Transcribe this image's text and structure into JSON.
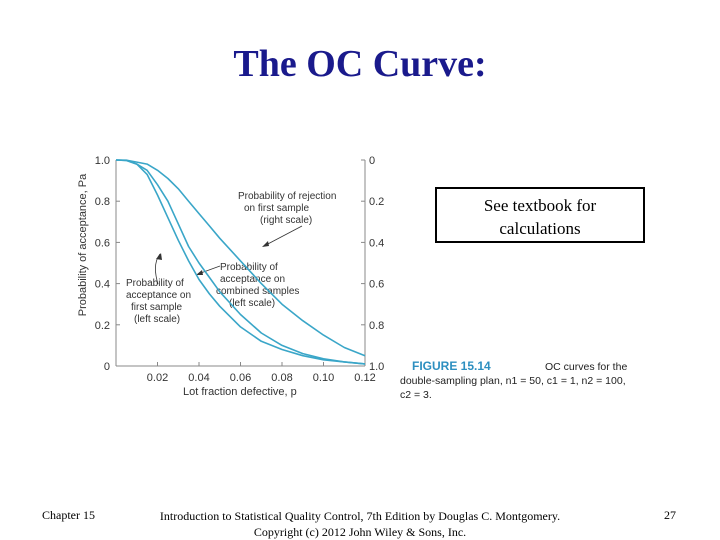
{
  "slide": {
    "title": "The OC Curve:",
    "note_line1": "See textbook for",
    "note_line2": "calculations",
    "footer_left": "Chapter 15",
    "footer_center_line1": "Introduction to Statistical Quality Control, 7th Edition by Douglas C. Montgomery.",
    "footer_center_line2": "Copyright (c) 2012  John Wiley & Sons, Inc.",
    "page_number": "27"
  },
  "chart_data": {
    "type": "line",
    "ylabel": "Probability of acceptance, Pa",
    "xlabel": "Lot fraction defective, p",
    "xlim": [
      0,
      0.12
    ],
    "ylim": [
      0,
      1.0
    ],
    "x_ticks": [
      "0.02",
      "0.04",
      "0.06",
      "0.08",
      "0.10",
      "0.12"
    ],
    "y_ticks": [
      "0",
      "0.2",
      "0.4",
      "0.6",
      "0.8",
      "1.0"
    ],
    "y2_ticks": [
      "0",
      "0.2",
      "0.4",
      "0.6",
      "0.8",
      "1.0"
    ],
    "x": [
      0,
      0.005,
      0.01,
      0.015,
      0.02,
      0.025,
      0.03,
      0.035,
      0.04,
      0.045,
      0.05,
      0.06,
      0.07,
      0.08,
      0.09,
      0.1,
      0.11,
      0.12
    ],
    "series": [
      {
        "values": [
          1.0,
          0.998,
          0.98,
          0.95,
          0.88,
          0.8,
          0.69,
          0.58,
          0.5,
          0.43,
          0.36,
          0.25,
          0.16,
          0.1,
          0.06,
          0.035,
          0.02,
          0.01
        ]
      },
      {
        "values": [
          1.0,
          0.998,
          0.98,
          0.93,
          0.83,
          0.72,
          0.61,
          0.51,
          0.42,
          0.35,
          0.29,
          0.19,
          0.12,
          0.08,
          0.05,
          0.03,
          0.02,
          0.01
        ]
      },
      {
        "values": [
          1.0,
          0.999,
          0.99,
          0.98,
          0.95,
          0.91,
          0.86,
          0.8,
          0.74,
          0.68,
          0.62,
          0.51,
          0.4,
          0.3,
          0.22,
          0.15,
          0.09,
          0.05
        ]
      }
    ],
    "annotations": [
      {
        "line1": "Probability of rejection",
        "line2": "on first sample",
        "line3": "(right scale)"
      },
      {
        "line1": "Probability of",
        "line2": "acceptance on",
        "line3": "combined samples",
        "line4": "(left scale)"
      },
      {
        "line1": "Probability of",
        "line2": "acceptance on",
        "line3": "first sample",
        "line4": "(left scale)"
      }
    ],
    "caption": {
      "label": "FIGURE 15.14",
      "text_line1": "OC curves for the",
      "text_line2": "double-sampling plan, n1 = 50, c1 = 1, n2 = 100,",
      "text_line3": "c2 = 3."
    },
    "colors": {
      "curve": "#3aa6c8",
      "axis": "#888888",
      "caption_label": "#2d8fc0"
    },
    "grid": false
  }
}
